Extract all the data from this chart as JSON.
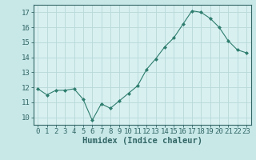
{
  "x": [
    0,
    1,
    2,
    3,
    4,
    5,
    6,
    7,
    8,
    9,
    10,
    11,
    12,
    13,
    14,
    15,
    16,
    17,
    18,
    19,
    20,
    21,
    22,
    23
  ],
  "y": [
    11.9,
    11.5,
    11.8,
    11.8,
    11.9,
    11.2,
    9.8,
    10.9,
    10.6,
    11.1,
    11.6,
    12.1,
    13.2,
    13.9,
    14.7,
    15.3,
    16.2,
    17.1,
    17.0,
    16.6,
    16.0,
    15.1,
    14.5,
    14.3
  ],
  "line_color": "#2e7d6e",
  "marker_color": "#2e7d6e",
  "bg_color": "#c8e8e8",
  "plot_bg_color": "#d8f0f0",
  "grid_color": "#b8d8d8",
  "spine_color": "#336666",
  "tick_color": "#336666",
  "xlabel": "Humidex (Indice chaleur)",
  "ylim": [
    9.5,
    17.5
  ],
  "xlim": [
    -0.5,
    23.5
  ],
  "yticks": [
    10,
    11,
    12,
    13,
    14,
    15,
    16,
    17
  ],
  "xticks": [
    0,
    1,
    2,
    3,
    4,
    5,
    6,
    7,
    8,
    9,
    10,
    11,
    12,
    13,
    14,
    15,
    16,
    17,
    18,
    19,
    20,
    21,
    22,
    23
  ],
  "tick_fontsize": 6.5,
  "xlabel_fontsize": 7.5
}
